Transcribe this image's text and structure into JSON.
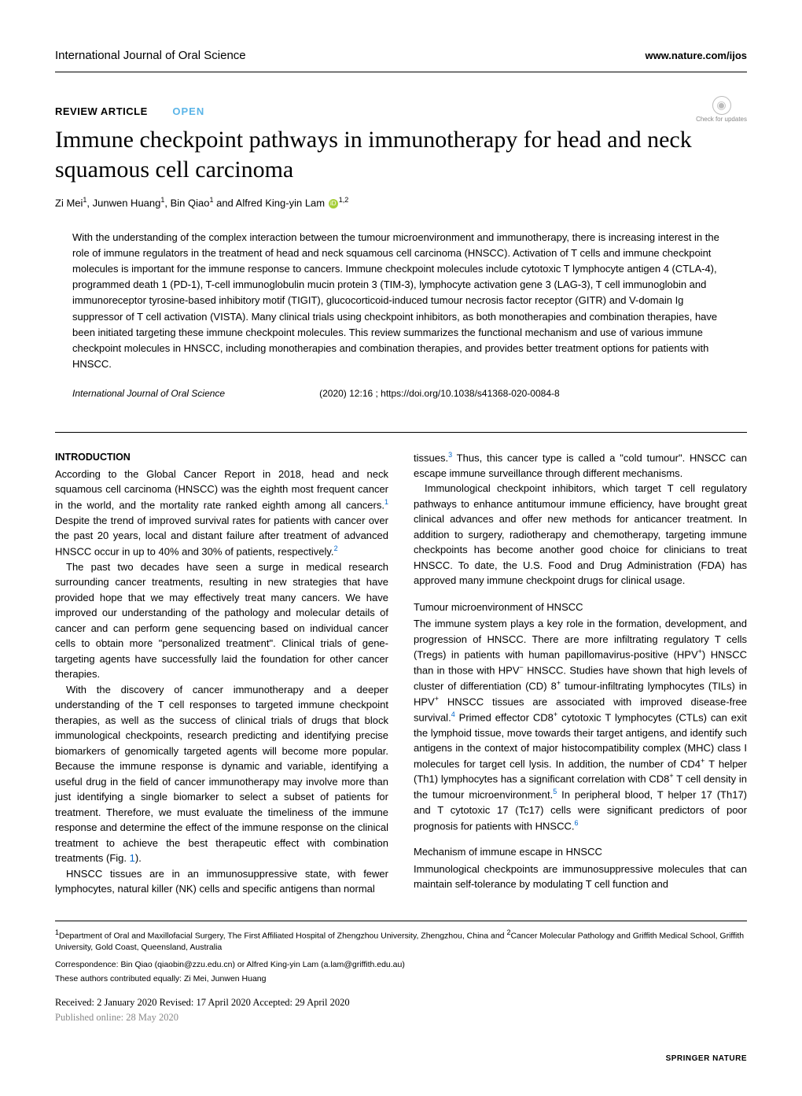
{
  "header": {
    "journal": "International Journal of Oral Science",
    "url": "www.nature.com/ijos"
  },
  "checkUpdates": {
    "icon": "◉",
    "label": "Check for updates"
  },
  "articleType": "REVIEW ARTICLE",
  "openBadge": "OPEN",
  "title": "Immune checkpoint pathways in immunotherapy for head and neck squamous cell carcinoma",
  "authors": {
    "a1": "Zi Mei",
    "a1sup": "1",
    "a2": ", Junwen Huang",
    "a2sup": "1",
    "a3": ", Bin Qiao",
    "a3sup": "1",
    "a4": " and Alfred King-yin Lam",
    "a4sup": "1,2"
  },
  "abstract": "With the understanding of the complex interaction between the tumour microenvironment and immunotherapy, there is increasing interest in the role of immune regulators in the treatment of head and neck squamous cell carcinoma (HNSCC). Activation of T cells and immune checkpoint molecules is important for the immune response to cancers. Immune checkpoint molecules include cytotoxic T lymphocyte antigen 4 (CTLA-4), programmed death 1 (PD-1), T-cell immunoglobulin mucin protein 3 (TIM-3), lymphocyte activation gene 3 (LAG-3), T cell immunoglobin and immunoreceptor tyrosine-based inhibitory motif (TIGIT), glucocorticoid-induced tumour necrosis factor receptor (GITR) and V-domain Ig suppressor of T cell activation (VISTA). Many clinical trials using checkpoint inhibitors, as both monotherapies and combination therapies, have been initiated targeting these immune checkpoint molecules. This review summarizes the functional mechanism and use of various immune checkpoint molecules in HNSCC, including monotherapies and combination therapies, and provides better treatment options for patients with HNSCC.",
  "doi": {
    "journal": "International Journal of Oral Science",
    "citation": "(2020) 12:16 ; https://doi.org/10.1038/s41368-020-0084-8"
  },
  "leftCol": {
    "introHead": "INTRODUCTION",
    "p1a": "According to the Global Cancer Report in 2018, head and neck squamous cell carcinoma (HNSCC) was the eighth most frequent cancer in the world, and the mortality rate ranked eighth among all cancers.",
    "p1ref1": "1",
    "p1b": " Despite the trend of improved survival rates for patients with cancer over the past 20 years, local and distant failure after treatment of advanced HNSCC occur in up to 40% and 30% of patients, respectively.",
    "p1ref2": "2",
    "p2": "The past two decades have seen a surge in medical research surrounding cancer treatments, resulting in new strategies that have provided hope that we may effectively treat many cancers. We have improved our understanding of the pathology and molecular details of cancer and can perform gene sequencing based on individual cancer cells to obtain more \"personalized treatment\". Clinical trials of gene-targeting agents have successfully laid the foundation for other cancer therapies.",
    "p3a": "With the discovery of cancer immunotherapy and a deeper understanding of the T cell responses to targeted immune checkpoint therapies, as well as the success of clinical trials of drugs that block immunological checkpoints, research predicting and identifying precise biomarkers of genomically targeted agents will become more popular. Because the immune response is dynamic and variable, identifying a useful drug in the field of cancer immunotherapy may involve more than just identifying a single biomarker to select a subset of patients for treatment. Therefore, we must evaluate the timeliness of the immune response and determine the effect of the immune response on the clinical treatment to achieve the best therapeutic effect with combination treatments (Fig. ",
    "p3fig": "1",
    "p3b": ").",
    "p4": "HNSCC tissues are in an immunosuppressive state, with fewer lymphocytes, natural killer (NK) cells and specific antigens than normal"
  },
  "rightCol": {
    "p1a": "tissues.",
    "p1ref3": "3",
    "p1b": " Thus, this cancer type is called a \"cold tumour\". HNSCC can escape immune surveillance through different mechanisms.",
    "p2": "Immunological checkpoint inhibitors, which target T cell regulatory pathways to enhance antitumour immune efficiency, have brought great clinical advances and offer new methods for anticancer treatment. In addition to surgery, radiotherapy and chemotherapy, targeting immune checkpoints has become another good choice for clinicians to treat HNSCC. To date, the U.S. Food and Drug Administration (FDA) has approved many immune checkpoint drugs for clinical usage.",
    "sub1": "Tumour microenvironment of HNSCC",
    "p3a": "The immune system plays a key role in the formation, development, and progression of HNSCC. There are more infiltrating regulatory T cells (Tregs) in patients with human papillomavirus-positive (HPV",
    "p3plus1": "+",
    "p3b": ") HNSCC than in those with HPV",
    "p3minus": "−",
    "p3c": " HNSCC. Studies have shown that high levels of cluster of differentiation (CD) 8",
    "p3plus2": "+",
    "p3d": " tumour-infiltrating lymphocytes (TILs) in HPV",
    "p3plus3": "+",
    "p3e": " HNSCC tissues are associated with improved disease-free survival.",
    "p3ref4": "4",
    "p3f": " Primed effector CD8",
    "p3plus4": "+",
    "p3g": " cytotoxic T lymphocytes (CTLs) can exit the lymphoid tissue, move towards their target antigens, and identify such antigens in the context of major histocompatibility complex (MHC) class I molecules for target cell lysis. In addition, the number of CD4",
    "p3plus5": "+",
    "p3h": " T helper (Th1) lymphocytes has a significant correlation with CD8",
    "p3plus6": "+",
    "p3i": " T cell density in the tumour microenvironment.",
    "p3ref5": "5",
    "p3j": " In peripheral blood, T helper 17 (Th17) and T cytotoxic 17 (Tc17) cells were significant predictors of poor prognosis for patients with HNSCC.",
    "p3ref6": "6",
    "sub2": "Mechanism of immune escape in HNSCC",
    "p4": "Immunological checkpoints are immunosuppressive molecules that can maintain self-tolerance by modulating T cell function and"
  },
  "footer": {
    "affil1sup": "1",
    "affil1": "Department of Oral and Maxillofacial Surgery, The First Affiliated Hospital of Zhengzhou University, Zhengzhou, China and ",
    "affil2sup": "2",
    "affil2": "Cancer Molecular Pathology and Griffith Medical School, Griffith University, Gold Coast, Queensland, Australia",
    "correspondence": "Correspondence: Bin Qiao (qiaobin@zzu.edu.cn) or Alfred King-yin Lam (a.lam@griffith.edu.au)",
    "equal": "These authors contributed equally: Zi Mei, Junwen Huang",
    "dates": "Received: 2 January 2020 Revised: 17 April 2020 Accepted: 29 April 2020",
    "pubOnline": "Published online: 28 May 2020",
    "publisher": "SPRINGER NATURE"
  }
}
